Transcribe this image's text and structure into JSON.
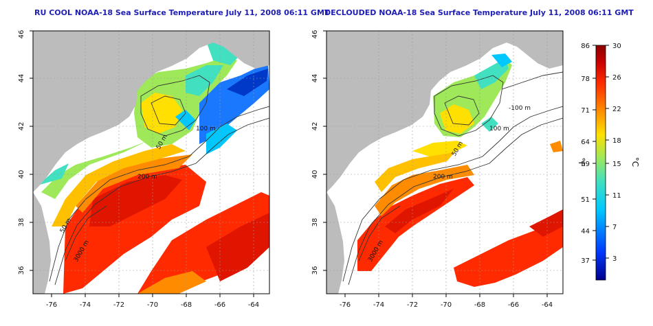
{
  "panels": [
    {
      "title": "RU COOL NOAA-18 Sea Surface Temperature July 11, 2008 06:11 GMT",
      "x_ticks": [
        "-76",
        "-74",
        "-72",
        "-70",
        "-68",
        "-66",
        "-64"
      ],
      "y_ticks": [
        "36",
        "38",
        "40",
        "42",
        "44",
        "46"
      ],
      "contour_labels": [
        "50 m",
        "100 m",
        "200 m",
        "50 m",
        "3000 m"
      ]
    },
    {
      "title": "DECLOUDED NOAA-18 Sea Surface Temperature July 11, 2008 06:11 GMT",
      "x_ticks": [
        "-76",
        "-74",
        "-72",
        "-70",
        "-68",
        "-66",
        "-64"
      ],
      "y_ticks": [
        "36",
        "38",
        "40",
        "42",
        "44",
        "46"
      ],
      "contour_labels": [
        "-100 m",
        "100 m",
        "200 m",
        "50 m",
        "3000 m"
      ]
    }
  ],
  "map_extent": {
    "lon": [
      -77.1,
      -63.1
    ],
    "lat": [
      35.1,
      46.0
    ]
  },
  "colorbar": {
    "fahrenheit_unit": "°F",
    "celsius_unit": "°C",
    "fahrenheit_ticks": [
      "86",
      "78",
      "71",
      "64",
      "59",
      "51",
      "44",
      "37"
    ],
    "celsius_ticks": [
      "30",
      "26",
      "22",
      "18",
      "15",
      "11",
      "7",
      "3"
    ],
    "range_c": [
      0,
      30
    ],
    "colors": [
      "#00008b",
      "#0038ff",
      "#00c8ff",
      "#40e0c0",
      "#9ee85a",
      "#ffe000",
      "#ff8c00",
      "#ff2a00",
      "#c80000",
      "#8b0000"
    ]
  },
  "colors": {
    "land": "#bcbcbc",
    "cloud": "#ffffff",
    "contour": "#333333",
    "grid": "#999999",
    "title": "#1e1eb4"
  }
}
